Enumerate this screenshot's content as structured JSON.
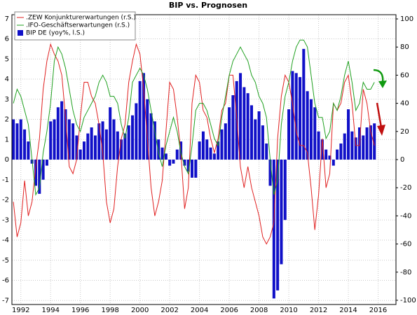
{
  "chart_data": {
    "type": "combo",
    "title": "BIP vs. Prognosen",
    "x": [
      1991.5,
      1991.75,
      1992,
      1992.25,
      1992.5,
      1992.75,
      1993,
      1993.25,
      1993.5,
      1993.75,
      1994,
      1994.25,
      1994.5,
      1994.75,
      1995,
      1995.25,
      1995.5,
      1995.75,
      1996,
      1996.25,
      1996.5,
      1996.75,
      1997,
      1997.25,
      1997.5,
      1997.75,
      1998,
      1998.25,
      1998.5,
      1998.75,
      1999,
      1999.25,
      1999.5,
      1999.75,
      2000,
      2000.25,
      2000.5,
      2000.75,
      2001,
      2001.25,
      2001.5,
      2001.75,
      2002,
      2002.25,
      2002.5,
      2002.75,
      2003,
      2003.25,
      2003.5,
      2003.75,
      2004,
      2004.25,
      2004.5,
      2004.75,
      2005,
      2005.25,
      2005.5,
      2005.75,
      2006,
      2006.25,
      2006.5,
      2006.75,
      2007,
      2007.25,
      2007.5,
      2007.75,
      2008,
      2008.25,
      2008.5,
      2008.75,
      2009,
      2009.25,
      2009.5,
      2009.75,
      2010,
      2010.25,
      2010.5,
      2010.75,
      2011,
      2011.25,
      2011.5,
      2011.75,
      2012,
      2012.25,
      2012.5,
      2012.75,
      2013,
      2013.25,
      2013.5,
      2013.75,
      2014,
      2014.25,
      2014.5,
      2014.75,
      2015,
      2015.25,
      2015.5,
      2015.75
    ],
    "series": [
      {
        "name": ".ZEW Konjunkturerwartungen (r.S.)",
        "type": "line",
        "axis": "y2",
        "color": "#e02020",
        "values": [
          -30,
          -55,
          -45,
          -15,
          -40,
          -30,
          -5,
          15,
          50,
          70,
          82,
          75,
          70,
          60,
          30,
          -5,
          -10,
          0,
          30,
          55,
          55,
          45,
          40,
          25,
          5,
          -30,
          -45,
          -35,
          -5,
          15,
          25,
          55,
          70,
          82,
          75,
          50,
          15,
          -20,
          -40,
          -30,
          -15,
          20,
          55,
          50,
          30,
          5,
          -35,
          -20,
          40,
          60,
          55,
          35,
          30,
          15,
          5,
          15,
          35,
          40,
          60,
          60,
          30,
          -5,
          -20,
          -5,
          -20,
          -30,
          -40,
          -55,
          -60,
          -55,
          -45,
          15,
          45,
          60,
          55,
          40,
          20,
          10,
          10,
          5,
          -20,
          -50,
          -25,
          15,
          -20,
          -10,
          40,
          35,
          40,
          55,
          60,
          40,
          10,
          10,
          50,
          40,
          20,
          10
        ]
      },
      {
        "name": ".IFO-Geschäftserwartungen (r.S.)",
        "type": "line",
        "axis": "y2",
        "color": "#20a020",
        "values": [
          40,
          50,
          45,
          35,
          25,
          0,
          -25,
          -20,
          5,
          20,
          40,
          70,
          80,
          75,
          65,
          50,
          35,
          25,
          20,
          30,
          35,
          40,
          45,
          55,
          60,
          55,
          45,
          45,
          40,
          25,
          15,
          30,
          55,
          60,
          65,
          60,
          50,
          35,
          20,
          5,
          -5,
          10,
          20,
          30,
          20,
          5,
          -5,
          -10,
          10,
          35,
          40,
          40,
          35,
          25,
          15,
          10,
          30,
          45,
          60,
          70,
          75,
          80,
          75,
          70,
          60,
          55,
          45,
          40,
          30,
          0,
          -25,
          -15,
          25,
          45,
          55,
          70,
          80,
          85,
          85,
          80,
          60,
          40,
          30,
          30,
          15,
          20,
          40,
          35,
          45,
          60,
          70,
          55,
          35,
          40,
          55,
          50,
          50,
          55
        ]
      },
      {
        "name": "BIP DE (yoy%, l.S.)",
        "type": "bar",
        "axis": "y",
        "color": "#1010c8",
        "values": [
          2.0,
          1.8,
          2.0,
          1.5,
          0.9,
          -0.2,
          -1.3,
          -1.7,
          -1.0,
          -0.3,
          1.9,
          2.0,
          2.6,
          2.9,
          2.5,
          2.0,
          1.8,
          1.2,
          0.5,
          0.9,
          1.3,
          1.6,
          1.2,
          1.8,
          1.9,
          1.5,
          2.6,
          2.0,
          1.4,
          1.0,
          1.3,
          1.7,
          2.2,
          2.8,
          3.9,
          4.3,
          3.0,
          2.3,
          1.9,
          1.0,
          0.6,
          0.3,
          -0.3,
          -0.2,
          0.5,
          0.9,
          -0.3,
          -0.6,
          -0.9,
          -0.9,
          0.9,
          1.4,
          1.0,
          0.6,
          0.3,
          0.9,
          1.5,
          1.8,
          2.6,
          3.2,
          3.9,
          4.3,
          3.6,
          3.3,
          2.7,
          2.0,
          2.4,
          1.7,
          0.8,
          -1.3,
          -6.9,
          -6.5,
          -5.2,
          -3.0,
          2.5,
          4.4,
          4.3,
          4.1,
          5.5,
          3.4,
          3.0,
          2.6,
          1.4,
          1.0,
          0.5,
          0.2,
          -0.3,
          0.5,
          0.8,
          1.3,
          2.5,
          1.4,
          1.1,
          1.6,
          1.2,
          1.6,
          1.7,
          1.8
        ]
      }
    ],
    "xlim": [
      1991.4,
      2017.2
    ],
    "xticks": [
      1992,
      1994,
      1996,
      1998,
      2000,
      2002,
      2004,
      2006,
      2008,
      2010,
      2012,
      2014,
      2016
    ],
    "ylim": [
      -7.2,
      7.2
    ],
    "yticks": [
      -7,
      -6,
      -5,
      -4,
      -3,
      -2,
      -1,
      0,
      1,
      2,
      3,
      4,
      5,
      6,
      7
    ],
    "y2lim": [
      -103,
      103
    ],
    "y2ticks": [
      -100,
      -80,
      -60,
      -40,
      -20,
      0,
      20,
      40,
      60,
      80,
      100
    ],
    "grid": true,
    "legend": "top-left"
  }
}
